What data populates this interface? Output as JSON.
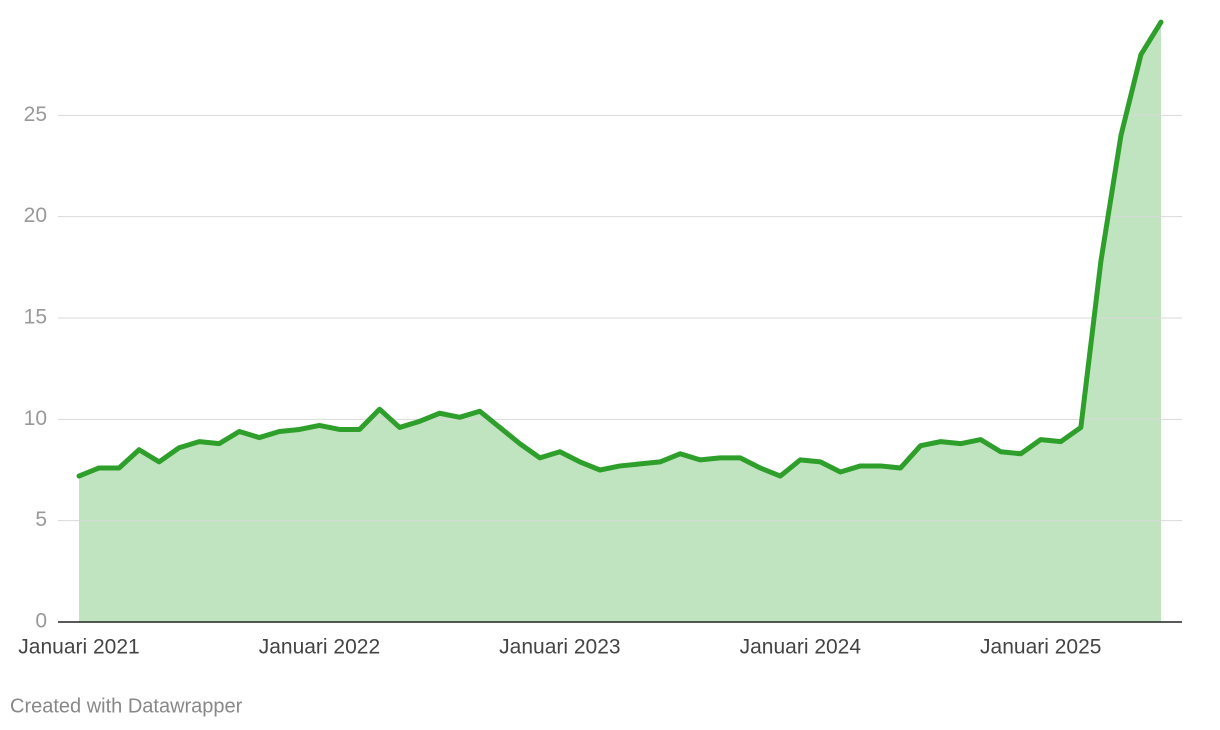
{
  "chart_data": {
    "type": "area",
    "x": [
      "2021-01",
      "2021-02",
      "2021-03",
      "2021-04",
      "2021-05",
      "2021-06",
      "2021-07",
      "2021-08",
      "2021-09",
      "2021-10",
      "2021-11",
      "2021-12",
      "2022-01",
      "2022-02",
      "2022-03",
      "2022-04",
      "2022-05",
      "2022-06",
      "2022-07",
      "2022-08",
      "2022-09",
      "2022-10",
      "2022-11",
      "2022-12",
      "2023-01",
      "2023-02",
      "2023-03",
      "2023-04",
      "2023-05",
      "2023-06",
      "2023-07",
      "2023-08",
      "2023-09",
      "2023-10",
      "2023-11",
      "2023-12",
      "2024-01",
      "2024-02",
      "2024-03",
      "2024-04",
      "2024-05",
      "2024-06",
      "2024-07",
      "2024-08",
      "2024-09",
      "2024-10",
      "2024-11",
      "2024-12",
      "2025-01",
      "2025-02",
      "2025-03",
      "2025-04",
      "2025-05",
      "2025-06",
      "2025-07"
    ],
    "values": [
      7.2,
      7.6,
      7.6,
      8.5,
      7.9,
      8.6,
      8.9,
      8.8,
      9.4,
      9.1,
      9.4,
      9.5,
      9.7,
      9.5,
      9.5,
      10.5,
      9.6,
      9.9,
      10.3,
      10.1,
      10.4,
      9.6,
      8.8,
      8.1,
      8.4,
      7.9,
      7.5,
      7.7,
      7.8,
      7.9,
      8.3,
      8.0,
      8.1,
      8.1,
      7.6,
      7.2,
      8.0,
      7.9,
      7.4,
      7.7,
      7.7,
      7.6,
      8.7,
      8.9,
      8.8,
      9.0,
      8.4,
      8.3,
      9.0,
      8.9,
      9.6,
      17.8,
      24.0,
      28.0,
      29.6
    ],
    "color": "#2e9f2b",
    "fill_color": "#c1e4c0",
    "ylim": [
      0,
      30
    ],
    "yticks": [
      0,
      5,
      10,
      15,
      20,
      25
    ],
    "grid": true,
    "xticks": [
      {
        "value": "2021-01",
        "label": "Januari 2021"
      },
      {
        "value": "2022-01",
        "label": "Januari 2022"
      },
      {
        "value": "2023-01",
        "label": "Januari 2023"
      },
      {
        "value": "2024-01",
        "label": "Januari 2024"
      },
      {
        "value": "2025-01",
        "label": "Januari 2025"
      }
    ],
    "footer": "Created with Datawrapper"
  }
}
